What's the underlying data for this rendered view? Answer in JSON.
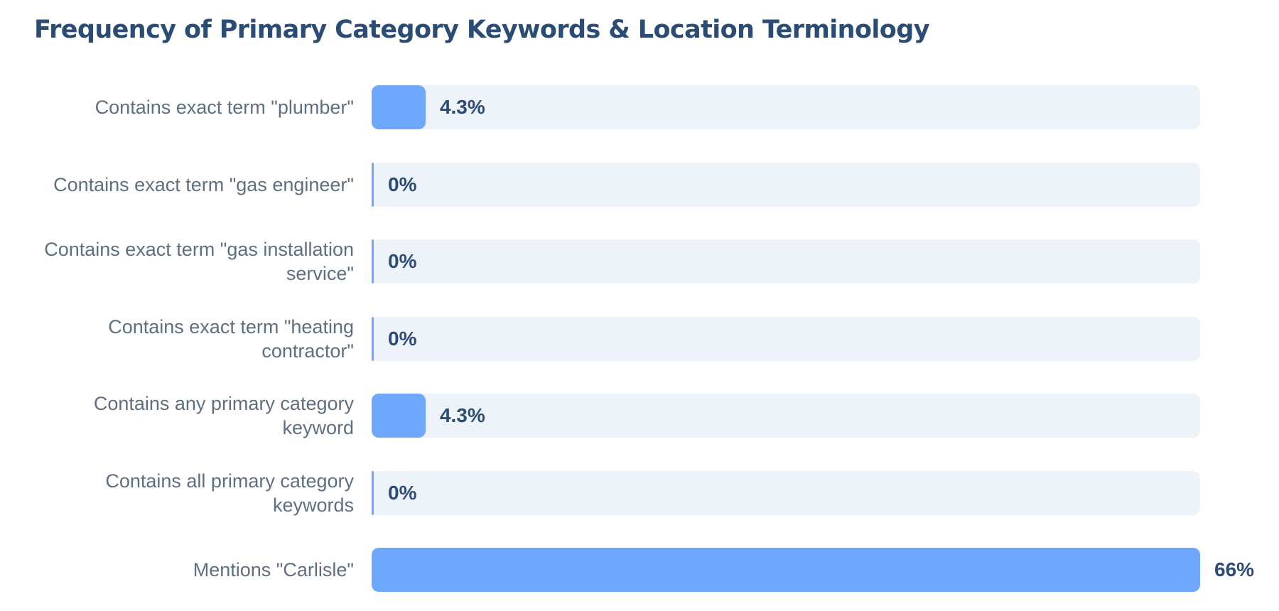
{
  "chart_data": {
    "type": "bar",
    "orientation": "horizontal",
    "title": "Frequency of Primary Category Keywords & Location Terminology",
    "xlim": [
      0,
      66
    ],
    "categories": [
      "Contains exact term \"plumber\"",
      "Contains exact term \"gas engineer\"",
      "Contains exact term \"gas installation service\"",
      "Contains exact term \"heating contractor\"",
      "Contains any primary category keyword",
      "Contains all primary category keywords",
      "Mentions \"Carlisle\""
    ],
    "values": [
      4.3,
      0,
      0,
      0,
      4.3,
      0,
      66
    ],
    "value_labels": [
      "4.3%",
      "0%",
      "0%",
      "0%",
      "4.3%",
      "0%",
      "66%"
    ],
    "colors": {
      "bar": "#6ea7fb",
      "track": "#eef2f9",
      "title": "#2b4c74",
      "label": "#5f6f82",
      "value": "#2b4c74"
    }
  }
}
